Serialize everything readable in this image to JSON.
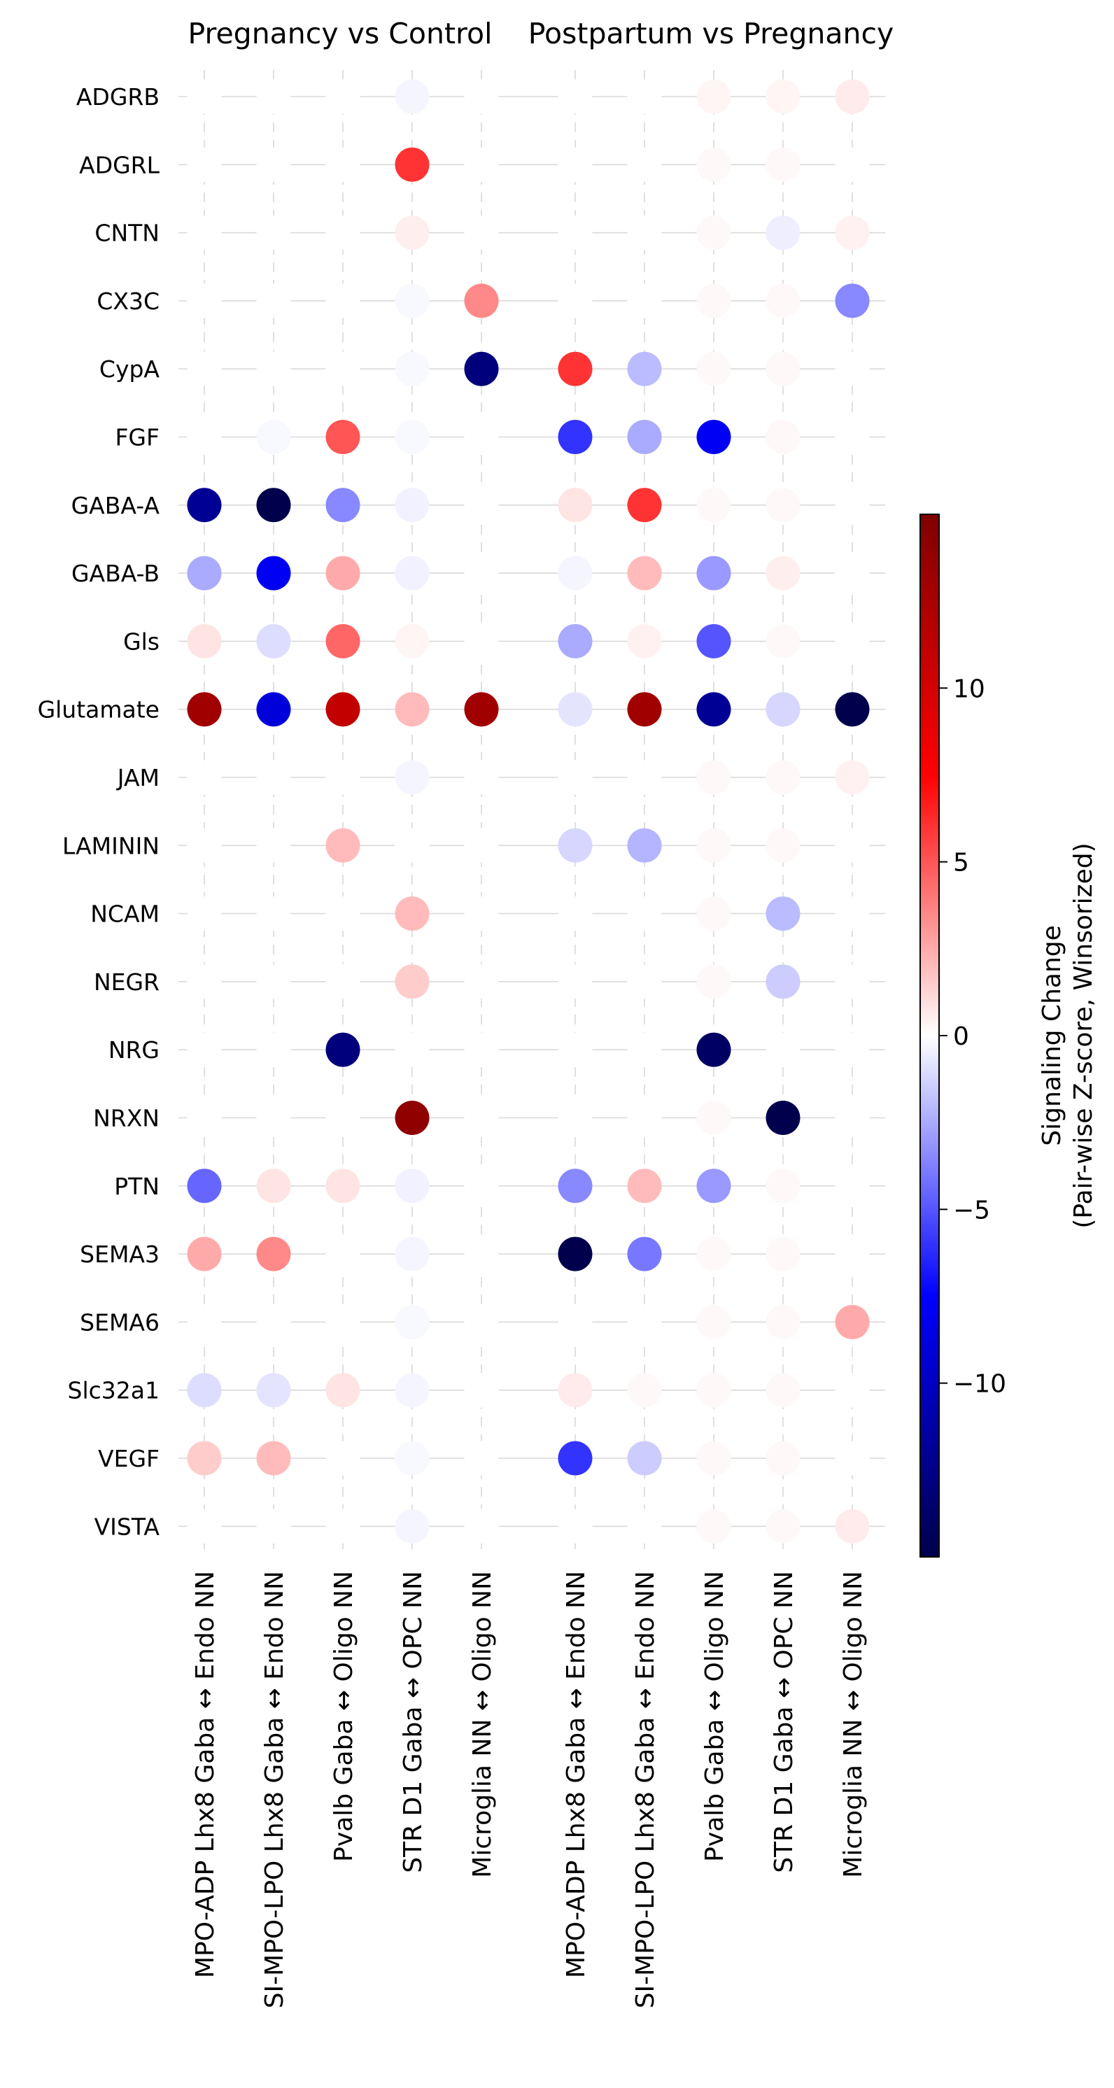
{
  "chart_data": {
    "type": "dotplot",
    "panels": [
      {
        "title": "Pregnancy vs Control",
        "columns": [
          "MPO-ADP Lhx8 Gaba ↔ Endo NN",
          "SI-MPO-LPO Lhx8 Gaba ↔ Endo NN",
          "Pvalb Gaba ↔ Oligo NN",
          "STR D1 Gaba ↔ OPC NN",
          "Microglia NN ↔ Oligo NN"
        ]
      },
      {
        "title": "Postpartum vs Pregnancy",
        "columns": [
          "MPO-ADP Lhx8 Gaba ↔ Endo NN",
          "SI-MPO-LPO Lhx8 Gaba ↔ Endo NN",
          "Pvalb Gaba ↔ Oligo NN",
          "STR D1 Gaba ↔ OPC NN",
          "Microglia NN ↔ Oligo NN"
        ]
      }
    ],
    "rows": [
      "ADGRB",
      "ADGRL",
      "CNTN",
      "CX3C",
      "CypA",
      "FGF",
      "GABA-A",
      "GABA-B",
      "Gls",
      "Glutamate",
      "JAM",
      "LAMININ",
      "NCAM",
      "NEGR",
      "NRG",
      "NRXN",
      "PTN",
      "SEMA3",
      "SEMA6",
      "Slc32a1",
      "VEGF",
      "VISTA"
    ],
    "values": [
      [
        0,
        0,
        0,
        -0.3,
        0,
        0,
        0,
        0.3,
        0.3,
        0.6
      ],
      [
        0,
        0,
        0,
        6,
        0,
        0,
        0,
        0.2,
        0.2,
        0
      ],
      [
        0,
        0,
        0,
        0.5,
        0,
        0,
        0,
        0.2,
        -0.5,
        0.4
      ],
      [
        0,
        0,
        0,
        -0.2,
        3.5,
        0,
        0,
        0.2,
        0.2,
        -3.5
      ],
      [
        0,
        0,
        0,
        -0.2,
        -13,
        6,
        -2,
        0.2,
        0.2,
        0
      ],
      [
        0,
        -0.2,
        5,
        -0.2,
        0,
        -6,
        -2.5,
        -8,
        0.2,
        0
      ],
      [
        -12,
        -15,
        -3.5,
        -0.4,
        0,
        0.8,
        6,
        0.2,
        0.2,
        0
      ],
      [
        -2.5,
        -8,
        2.5,
        -0.4,
        0,
        -0.3,
        2,
        -3,
        0.5,
        0
      ],
      [
        0.8,
        -1,
        4.5,
        0.3,
        0,
        -2.5,
        0.4,
        -5,
        0.2,
        0
      ],
      [
        13,
        -9,
        11,
        2,
        13,
        -0.8,
        13,
        -12,
        -1.2,
        -15
      ],
      [
        0,
        0,
        0,
        -0.3,
        0,
        0,
        0,
        0.2,
        0.2,
        0.4
      ],
      [
        0,
        0,
        2,
        0,
        0,
        -1.2,
        -2.2,
        0.2,
        0.2,
        0
      ],
      [
        0,
        0,
        0,
        2,
        0,
        0,
        0,
        0.2,
        -2,
        0
      ],
      [
        0,
        0,
        0,
        1.5,
        0,
        0,
        0,
        0.2,
        -1.5,
        0
      ],
      [
        0,
        0,
        -13,
        0,
        0,
        0,
        0,
        -14,
        0,
        0
      ],
      [
        0,
        0,
        0,
        14,
        0,
        0,
        0,
        0.2,
        -15,
        0
      ],
      [
        -4.5,
        0.8,
        0.8,
        -0.4,
        0,
        -3.5,
        2,
        -3,
        0.2,
        0
      ],
      [
        2.5,
        3.5,
        0,
        -0.3,
        0,
        -15,
        -4,
        0.2,
        0.2,
        0
      ],
      [
        0,
        0,
        0,
        -0.2,
        0,
        0,
        0,
        0.2,
        0.2,
        2.5
      ],
      [
        -1,
        -0.8,
        0.8,
        -0.3,
        0,
        0.6,
        0.2,
        0.2,
        0.2,
        0
      ],
      [
        1.5,
        2,
        0,
        -0.2,
        0,
        -6,
        -1.5,
        0.2,
        0.2,
        0
      ],
      [
        0,
        0,
        0,
        -0.3,
        0,
        0,
        0,
        0.2,
        0.2,
        0.6
      ]
    ],
    "colorbar": {
      "label_lines": [
        "Signaling Change",
        "(Pair-wise Z-score, Winsorized)"
      ],
      "ticks": [
        10,
        5,
        0,
        -5,
        -10
      ],
      "range": [
        -15,
        15
      ],
      "colormap": "seismic"
    },
    "grid": true
  }
}
